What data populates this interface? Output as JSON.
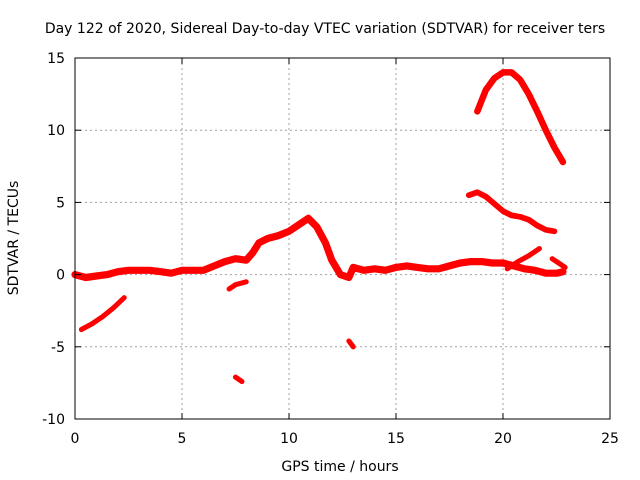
{
  "chart_data": {
    "type": "scatter",
    "title": "Day 122 of 2020, Sidereal Day-to-day VTEC variation (SDTVAR) for receiver ters",
    "xlabel": "GPS time / hours",
    "ylabel": "SDTVAR / TECUs",
    "xlim": [
      0,
      25
    ],
    "ylim": [
      -10,
      15
    ],
    "xticks": [
      "0",
      "5",
      "10",
      "15",
      "20",
      "25"
    ],
    "yticks": [
      "-10",
      "-5",
      "0",
      "5",
      "10",
      "15"
    ],
    "grid": true,
    "series_color": "#ff0000",
    "series": [
      {
        "name": "main-trace",
        "width": 0.5,
        "x": [
          0.0,
          0.5,
          1.0,
          1.5,
          2.0,
          2.5,
          3.0,
          3.5,
          4.0,
          4.5,
          5.0,
          5.5,
          6.0,
          6.5,
          7.0,
          7.5,
          8.0,
          8.3,
          8.6,
          9.0,
          9.5,
          10.0,
          10.5,
          10.9,
          11.3,
          11.7,
          12.0,
          12.4,
          12.8,
          13.0,
          13.5,
          14.0,
          14.5,
          15.0,
          15.5,
          16.0,
          16.5,
          17.0,
          17.5,
          18.0,
          18.5,
          19.0,
          19.5,
          20.0,
          20.5,
          21.0,
          21.5,
          22.0,
          22.5,
          22.8
        ],
        "y": [
          0.0,
          -0.2,
          -0.1,
          0.0,
          0.2,
          0.3,
          0.3,
          0.3,
          0.2,
          0.1,
          0.3,
          0.3,
          0.3,
          0.6,
          0.9,
          1.1,
          1.0,
          1.5,
          2.2,
          2.5,
          2.7,
          3.0,
          3.5,
          3.9,
          3.3,
          2.2,
          1.0,
          0.0,
          -0.2,
          0.5,
          0.3,
          0.4,
          0.3,
          0.5,
          0.6,
          0.5,
          0.4,
          0.4,
          0.6,
          0.8,
          0.9,
          0.9,
          0.8,
          0.8,
          0.6,
          0.4,
          0.3,
          0.1,
          0.1,
          0.2
        ]
      },
      {
        "name": "early-negative-segment",
        "width": 0.35,
        "x": [
          0.3,
          0.8,
          1.3,
          1.8,
          2.3
        ],
        "y": [
          -3.8,
          -3.4,
          -2.9,
          -2.3,
          -1.6
        ]
      },
      {
        "name": "short-segment-7h",
        "width": 0.35,
        "x": [
          7.2,
          7.5,
          8.0
        ],
        "y": [
          -1.0,
          -0.7,
          -0.5
        ]
      },
      {
        "name": "dip-segment-7.6h",
        "width": 0.35,
        "x": [
          7.5,
          7.8
        ],
        "y": [
          -7.1,
          -7.4
        ]
      },
      {
        "name": "dip-segment-12.8h",
        "width": 0.35,
        "x": [
          12.8,
          13.0
        ],
        "y": [
          -4.6,
          -5.0
        ]
      },
      {
        "name": "rising-segment-21h",
        "width": 0.35,
        "x": [
          20.2,
          20.7,
          21.2,
          21.7
        ],
        "y": [
          0.4,
          0.9,
          1.3,
          1.8
        ]
      },
      {
        "name": "late-segment-22.5h",
        "width": 0.35,
        "x": [
          22.3,
          22.6,
          22.9
        ],
        "y": [
          1.1,
          0.8,
          0.5
        ]
      },
      {
        "name": "upper-arc",
        "width": 0.45,
        "x": [
          18.8,
          19.2,
          19.6,
          20.0,
          20.4,
          20.8,
          21.2,
          21.6,
          22.0,
          22.4,
          22.8
        ],
        "y": [
          11.3,
          12.8,
          13.6,
          14.0,
          14.0,
          13.5,
          12.5,
          11.3,
          10.0,
          8.8,
          7.8
        ]
      },
      {
        "name": "middle-arc",
        "width": 0.4,
        "x": [
          18.4,
          18.8,
          19.2,
          19.6,
          20.0,
          20.4,
          20.8,
          21.2,
          21.6,
          22.0,
          22.4
        ],
        "y": [
          5.5,
          5.7,
          5.4,
          4.9,
          4.4,
          4.1,
          4.0,
          3.8,
          3.4,
          3.1,
          3.0
        ]
      }
    ]
  }
}
